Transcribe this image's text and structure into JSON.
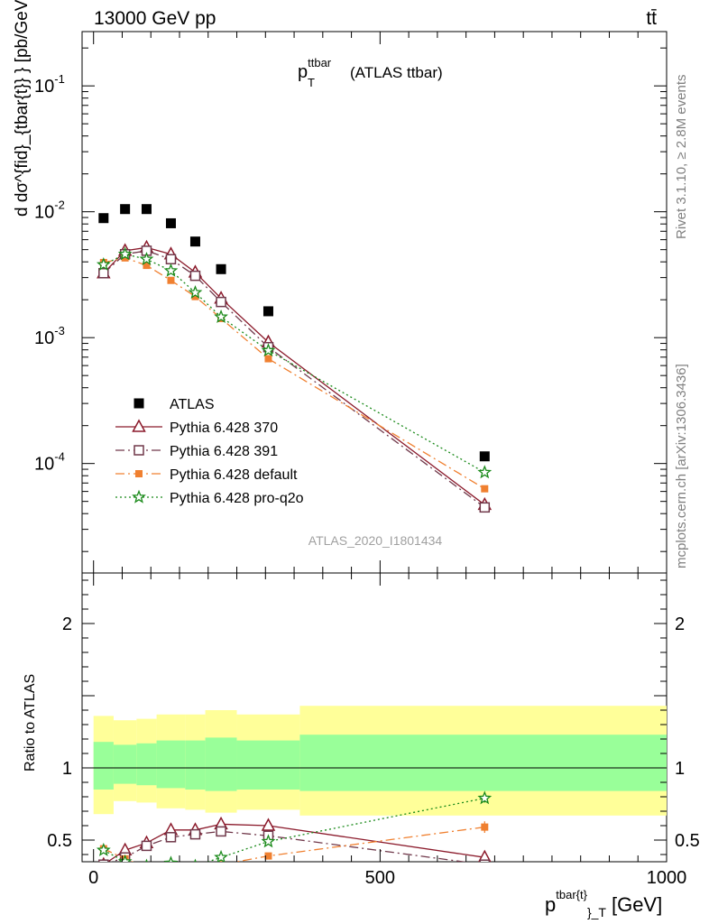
{
  "header": {
    "energy_label": "13000 GeV pp",
    "process_label": "tt̄"
  },
  "side_labels": {
    "rivet": "Rivet 3.1.10, ≥ 2.8M events",
    "mcplots": "mcplots.cern.ch [arXiv:1306.3436]"
  },
  "chart_data": [
    {
      "type": "scatter",
      "title_main": "p",
      "title_sub": "T",
      "title_sup": "ttbar",
      "title_suffix": "(ATLAS ttbar)",
      "watermark": "ATLAS_2020_I1801434",
      "ylabel": "d dσ^{fid}_{tbar{t}} } [pb/GeV] / d p_T",
      "yscale": "log",
      "ylim": [
        1.35e-05,
        0.27
      ],
      "xlim": [
        -20,
        1000
      ],
      "y_ticks": [
        {
          "value": 0.1,
          "label": "10",
          "exp": "-1"
        },
        {
          "value": 0.01,
          "label": "10",
          "exp": "-2"
        },
        {
          "value": 0.001,
          "label": "10",
          "exp": "-3"
        },
        {
          "value": 0.0001,
          "label": "10",
          "exp": "-4"
        }
      ],
      "x": [
        17.5,
        55,
        92.5,
        135,
        177.5,
        222.5,
        305,
        682.5
      ],
      "series": [
        {
          "name": "ATLAS",
          "color": "#000000",
          "marker": "filled-square",
          "line": "none",
          "values": [
            0.0089,
            0.0105,
            0.0105,
            0.0081,
            0.0058,
            0.0035,
            0.00162,
            0.000114
          ]
        },
        {
          "name": "Pythia 6.428 370",
          "color": "#8b1a2b",
          "marker": "open-triangle",
          "line": "solid",
          "values": [
            0.00325,
            0.0049,
            0.0052,
            0.0046,
            0.0033,
            0.00205,
            0.00092,
            4.7e-05
          ]
        },
        {
          "name": "Pythia 6.428 391",
          "color": "#70384a",
          "marker": "open-square",
          "line": "dashdot",
          "values": [
            0.00325,
            0.0046,
            0.0049,
            0.0042,
            0.0031,
            0.00192,
            0.00084,
            4.48e-05
          ]
        },
        {
          "name": "Pythia 6.428 default",
          "color": "#f08030",
          "marker": "filled-square-small",
          "line": "dashdot",
          "values": [
            0.00395,
            0.0043,
            0.00375,
            0.00285,
            0.00212,
            0.00142,
            0.00068,
            6.3e-05
          ]
        },
        {
          "name": "Pythia 6.428 pro-q2o",
          "color": "#1a8a1a",
          "marker": "open-star",
          "line": "dotted",
          "values": [
            0.0038,
            0.0046,
            0.0042,
            0.0034,
            0.00228,
            0.00146,
            0.00079,
            8.5e-05
          ]
        }
      ]
    },
    {
      "type": "scatter",
      "ylabel": "Ratio to ATLAS",
      "xlabel_main": "p",
      "xlabel_sup": "tbar{t}",
      "xlabel_sub": "}_T",
      "xlabel_unit": "[GeV]",
      "ylim": [
        0.35,
        2.35
      ],
      "xlim": [
        -20,
        1000
      ],
      "x_ticks": [
        0,
        500,
        1000
      ],
      "y_ticks": [
        0.5,
        1,
        2
      ],
      "bands": {
        "edges": [
          0,
          35,
          75,
          110,
          160,
          195,
          250,
          360,
          1000
        ],
        "yellow_lo": [
          0.68,
          0.77,
          0.76,
          0.72,
          0.71,
          0.69,
          0.71,
          0.67
        ],
        "yellow_hi": [
          1.36,
          1.33,
          1.34,
          1.37,
          1.37,
          1.4,
          1.37,
          1.43
        ],
        "green_lo": [
          0.85,
          0.89,
          0.88,
          0.86,
          0.85,
          0.84,
          0.85,
          0.84
        ],
        "green_hi": [
          1.18,
          1.16,
          1.17,
          1.19,
          1.19,
          1.21,
          1.19,
          1.23
        ],
        "yellow_color": "#ffff99",
        "green_color": "#99ff99"
      },
      "x": [
        17.5,
        55,
        92.5,
        135,
        177.5,
        222.5,
        305,
        682.5
      ],
      "series": [
        {
          "name": "Pythia 6.428 370",
          "color": "#8b1a2b",
          "marker": "open-triangle",
          "line": "solid",
          "values": [
            0.33,
            0.43,
            0.48,
            0.57,
            0.57,
            0.61,
            0.6,
            0.38
          ],
          "errors": [
            0.01,
            0.01,
            0.01,
            0.015,
            0.015,
            0.02,
            0.02,
            0.03
          ]
        },
        {
          "name": "Pythia 6.428 391",
          "color": "#70384a",
          "marker": "open-square",
          "line": "dashdot",
          "values": [
            0.33,
            0.38,
            0.46,
            0.52,
            0.54,
            0.56,
            0.53,
            0.33
          ],
          "errors": [
            0.01,
            0.01,
            0.01,
            0.015,
            0.015,
            0.02,
            0.02,
            0.03
          ]
        },
        {
          "name": "Pythia 6.428 default",
          "color": "#f08030",
          "marker": "filled-square-small",
          "line": "dashdot",
          "values": [
            0.44,
            0.37,
            0.31,
            0.3,
            0.29,
            0.33,
            0.39,
            0.59
          ],
          "errors": [
            0.01,
            0.01,
            0.01,
            0.015,
            0.015,
            0.02,
            0.02,
            0.04
          ]
        },
        {
          "name": "Pythia 6.428 pro-q2o",
          "color": "#1a8a1a",
          "marker": "open-star",
          "line": "dotted",
          "values": [
            0.43,
            0.35,
            0.32,
            0.34,
            0.32,
            0.38,
            0.49,
            0.79
          ],
          "errors": [
            0.01,
            0.01,
            0.01,
            0.015,
            0.015,
            0.02,
            0.02,
            0.03
          ]
        }
      ]
    }
  ]
}
